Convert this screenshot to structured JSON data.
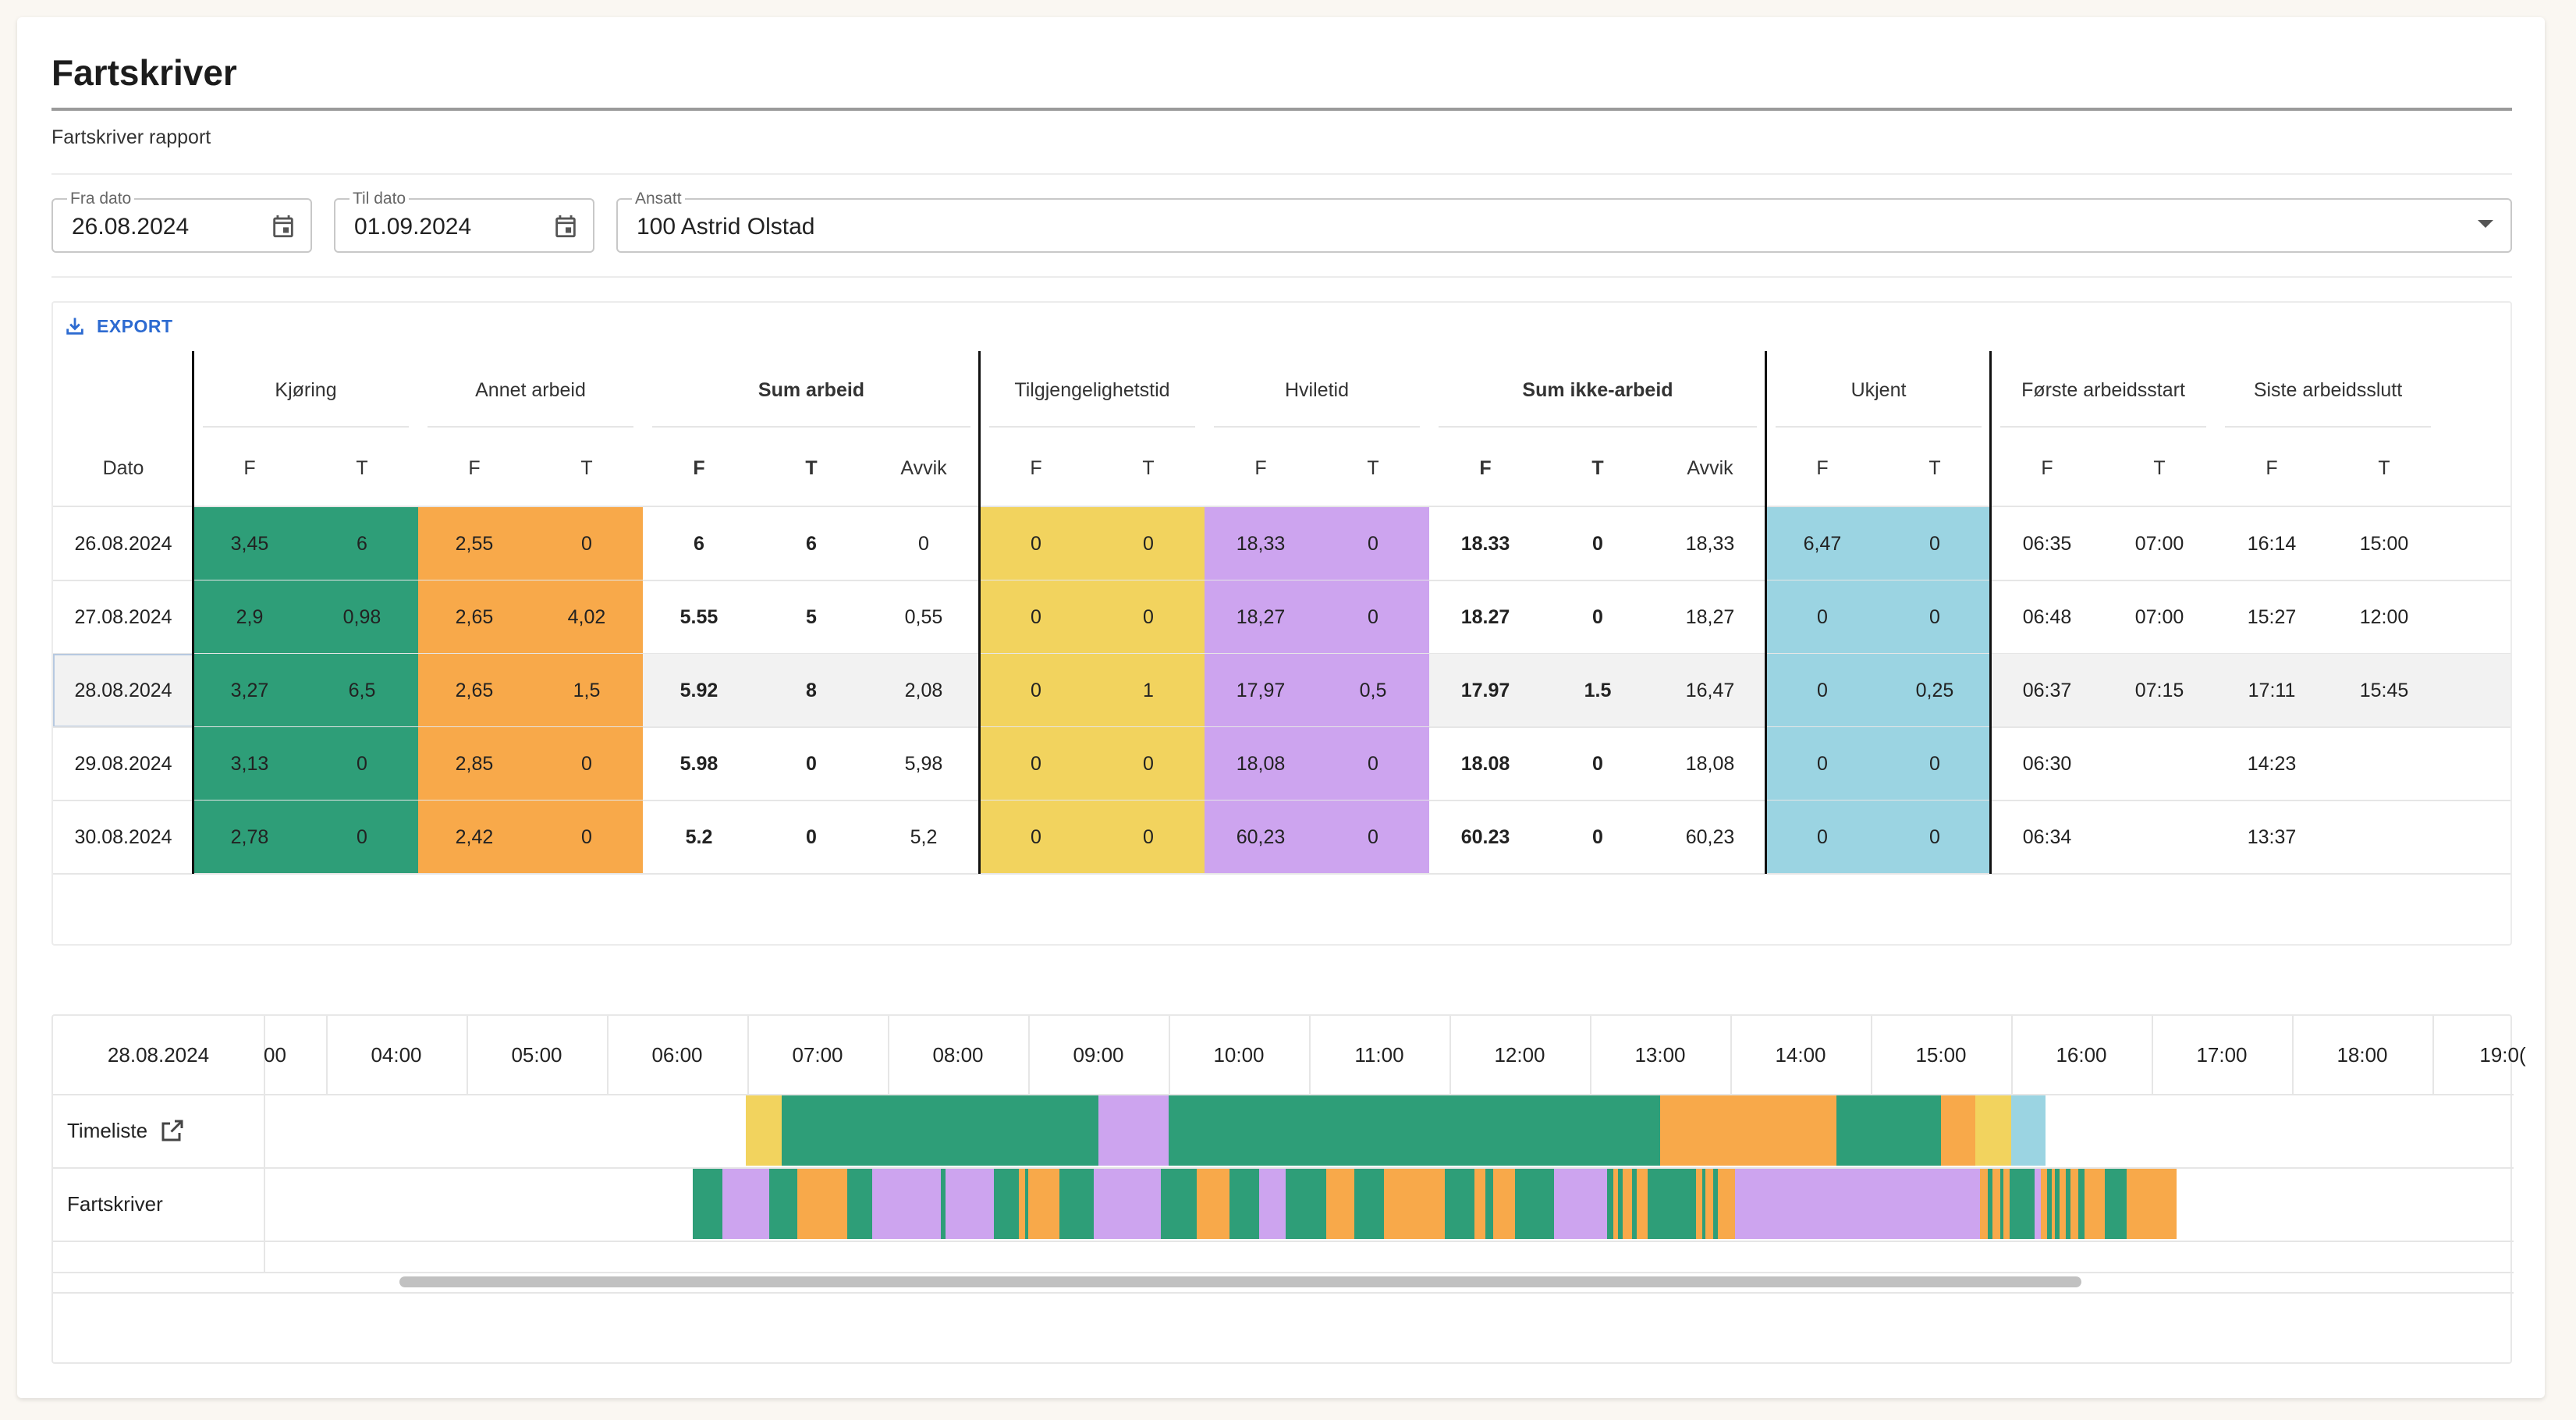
{
  "page": {
    "title": "Fartskriver",
    "subtitle": "Fartskriver rapport"
  },
  "filters": {
    "from": {
      "label": "Fra dato",
      "value": "26.08.2024"
    },
    "to": {
      "label": "Til dato",
      "value": "01.09.2024"
    },
    "employee": {
      "label": "Ansatt",
      "value": "100 Astrid Olstad"
    }
  },
  "export_label": "EXPORT",
  "table": {
    "date_header": "Dato",
    "groups": [
      {
        "label": "Kjøring",
        "bold": false
      },
      {
        "label": "Annet arbeid",
        "bold": false
      },
      {
        "label": "Sum arbeid",
        "bold": true
      },
      {
        "label": "Tilgjengelighetstid",
        "bold": false
      },
      {
        "label": "Hviletid",
        "bold": false
      },
      {
        "label": "Sum ikke-arbeid",
        "bold": true
      },
      {
        "label": "Ukjent",
        "bold": false
      },
      {
        "label": "Første arbeidsstart",
        "bold": false
      },
      {
        "label": "Siste arbeidsslutt",
        "bold": false
      }
    ],
    "subheaders": [
      "F",
      "T",
      "F",
      "T",
      "F",
      "T",
      "Avvik",
      "F",
      "T",
      "F",
      "T",
      "F",
      "T",
      "Avvik",
      "F",
      "T",
      "F",
      "T",
      "F",
      "T"
    ],
    "rows": [
      {
        "date": "26.08.2024",
        "values": [
          "3,45",
          "6",
          "2,55",
          "0",
          "6",
          "6",
          "0",
          "0",
          "0",
          "18,33",
          "0",
          "18.33",
          "0",
          "18,33",
          "6,47",
          "0",
          "06:35",
          "07:00",
          "16:14",
          "15:00"
        ]
      },
      {
        "date": "27.08.2024",
        "values": [
          "2,9",
          "0,98",
          "2,65",
          "4,02",
          "5.55",
          "5",
          "0,55",
          "0",
          "0",
          "18,27",
          "0",
          "18.27",
          "0",
          "18,27",
          "0",
          "0",
          "06:48",
          "07:00",
          "15:27",
          "12:00"
        ]
      },
      {
        "date": "28.08.2024",
        "values": [
          "3,27",
          "6,5",
          "2,65",
          "1,5",
          "5.92",
          "8",
          "2,08",
          "0",
          "1",
          "17,97",
          "0,5",
          "17.97",
          "1.5",
          "16,47",
          "0",
          "0,25",
          "06:37",
          "07:15",
          "17:11",
          "15:45"
        ]
      },
      {
        "date": "29.08.2024",
        "values": [
          "3,13",
          "0",
          "2,85",
          "0",
          "5.98",
          "0",
          "5,98",
          "0",
          "0",
          "18,08",
          "0",
          "18.08",
          "0",
          "18,08",
          "0",
          "0",
          "06:30",
          "",
          "14:23",
          ""
        ]
      },
      {
        "date": "30.08.2024",
        "values": [
          "2,78",
          "0",
          "2,42",
          "0",
          "5.2",
          "0",
          "5,2",
          "0",
          "0",
          "60,23",
          "0",
          "60.23",
          "0",
          "60,23",
          "0",
          "0",
          "06:34",
          "",
          "13:37",
          ""
        ]
      }
    ],
    "selected_row": 2
  },
  "colors": {
    "kjoring": "#2e9e78",
    "annet": "#f8a94a",
    "tilgjengelighet": "#f2d35e",
    "hvile": "#cda4ef",
    "ukjent": "#9bd4e2",
    "selected_row_bg": "#f2f2f2"
  },
  "timeline": {
    "date": "28.08.2024",
    "hours": [
      "00",
      "04:00",
      "05:00",
      "06:00",
      "07:00",
      "08:00",
      "09:00",
      "10:00",
      "11:00",
      "12:00",
      "13:00",
      "14:00",
      "15:00",
      "16:00",
      "17:00",
      "18:00",
      "19:0("
    ],
    "rows": [
      {
        "label": "Timeliste",
        "has_link_icon": true
      },
      {
        "label": "Fartskriver",
        "has_link_icon": false
      }
    ]
  }
}
